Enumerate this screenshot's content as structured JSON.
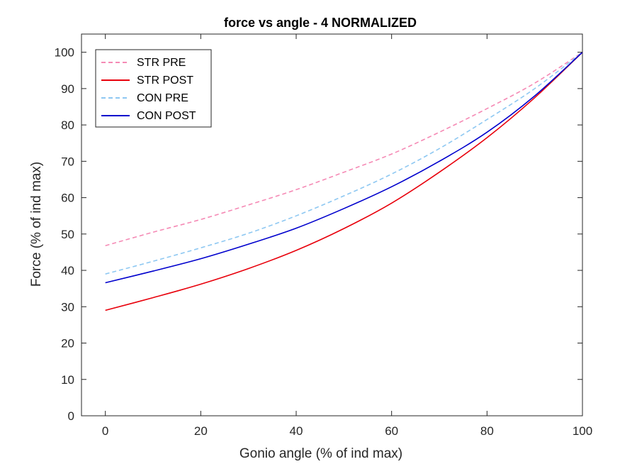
{
  "chart_data": {
    "type": "line",
    "title": "force vs angle - 4 NORMALIZED",
    "xlabel": "Gonio angle (% of ind max)",
    "ylabel": "Force (% of ind max)",
    "xlim": [
      -5,
      100
    ],
    "ylim": [
      0,
      105
    ],
    "xticks": [
      0,
      20,
      40,
      60,
      80,
      100
    ],
    "yticks": [
      0,
      10,
      20,
      30,
      40,
      50,
      60,
      70,
      80,
      90,
      100
    ],
    "grid": false,
    "legend_position": "top-left",
    "x": [
      0,
      10,
      20,
      30,
      40,
      50,
      60,
      70,
      80,
      90,
      100
    ],
    "series": [
      {
        "name": "STR PRE",
        "color": "#f58ab5",
        "dash": "dashed",
        "values": [
          46.8,
          50.5,
          54.0,
          58.0,
          62.2,
          67.0,
          72.0,
          78.0,
          84.5,
          91.5,
          100
        ]
      },
      {
        "name": "STR POST",
        "color": "#e8000b",
        "dash": "solid",
        "values": [
          29.0,
          32.5,
          36.2,
          40.5,
          45.5,
          51.5,
          58.5,
          67.0,
          76.5,
          87.5,
          100
        ]
      },
      {
        "name": "CON PRE",
        "color": "#8ec8f2",
        "dash": "dashed",
        "values": [
          39.0,
          42.5,
          46.2,
          50.2,
          55.0,
          60.5,
          66.5,
          73.5,
          81.5,
          90.0,
          100
        ]
      },
      {
        "name": "CON POST",
        "color": "#0000cd",
        "dash": "solid",
        "values": [
          36.6,
          39.8,
          43.2,
          47.2,
          51.6,
          57.0,
          63.0,
          70.0,
          78.0,
          88.0,
          100
        ]
      }
    ]
  }
}
